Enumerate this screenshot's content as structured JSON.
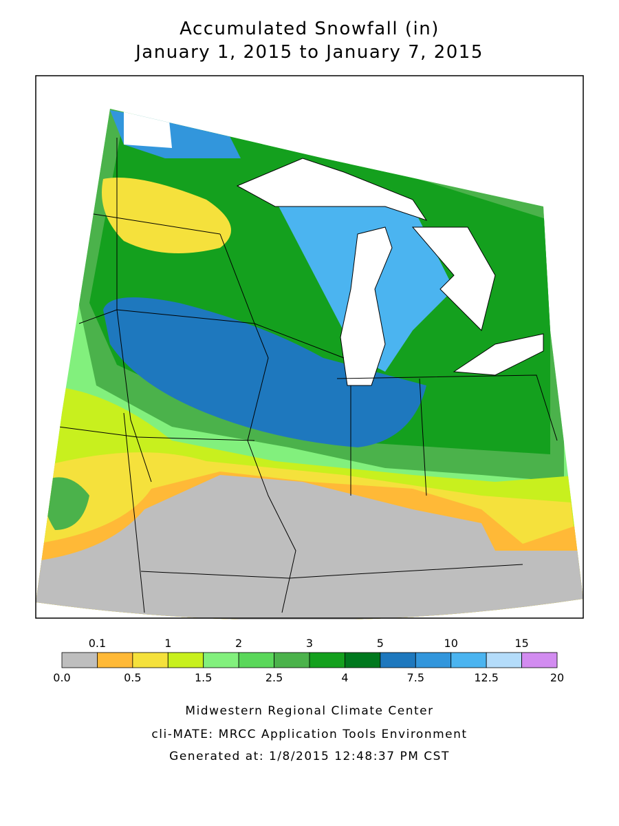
{
  "title": "Accumulated Snowfall (in)",
  "subtitle": "January 1, 2015 to January 7, 2015",
  "legend": {
    "bounds": [
      {
        "value": 0,
        "label": "0.0"
      },
      0.1,
      0.5,
      1,
      1.5,
      2,
      2.5,
      3,
      4,
      5,
      7.5,
      10,
      12.5,
      15,
      20
    ],
    "colors": [
      "#bebebe",
      "#ffb937",
      "#f5e13c",
      "#c8f01e",
      "#82f07d",
      "#5ad75a",
      "#4bb24b",
      "#14a01e",
      "#00781e",
      "#1e78be",
      "#3296dc",
      "#4bb4f0",
      "#b4dcfa",
      "#d28cf0"
    ]
  },
  "footer": [
    "Midwestern Regional Climate Center",
    "cli-MATE: MRCC Application Tools Environment",
    "Generated at: 1/8/2015 12:48:37 PM CST"
  ]
}
